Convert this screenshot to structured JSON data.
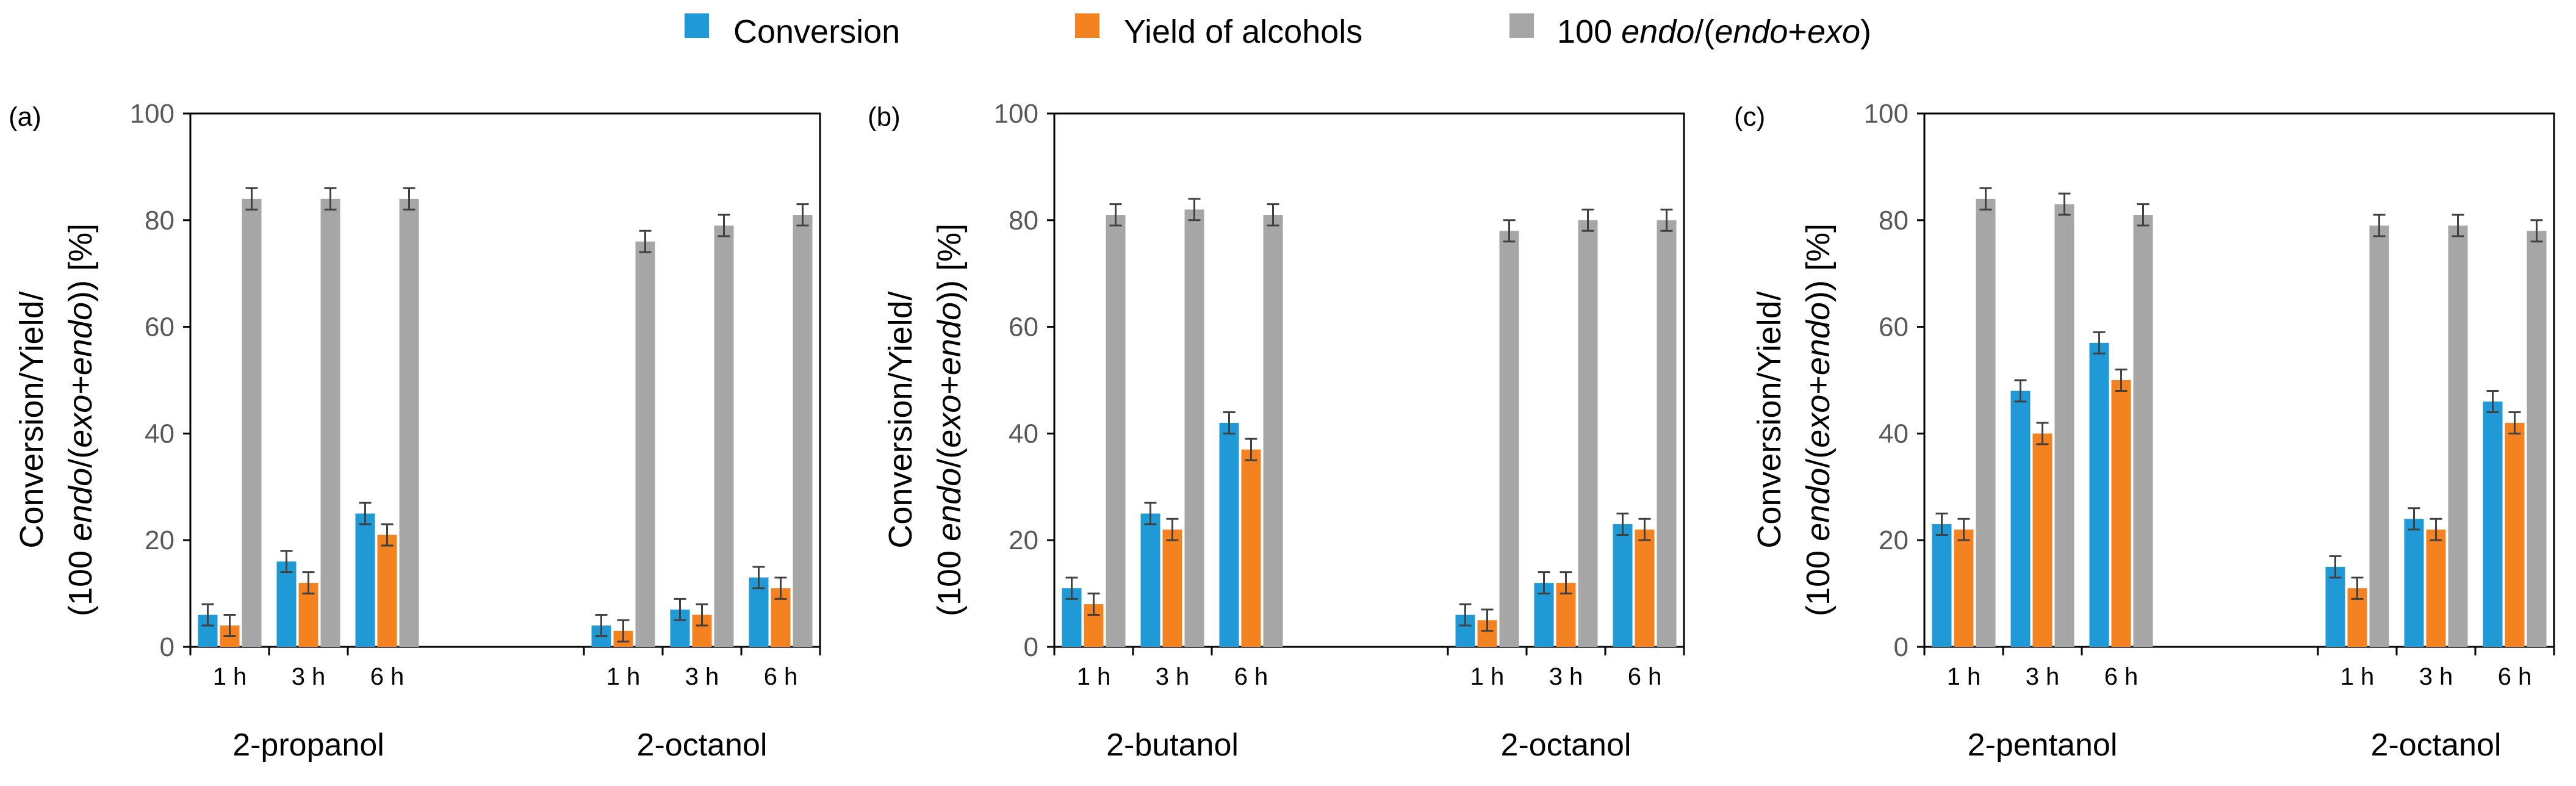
{
  "legend": {
    "conversion": "Conversion",
    "yield": "Yield of alcohols",
    "endo_prefix": "100 ",
    "endo_1": "endo",
    "endo_mid": "/(",
    "endo_2": "endo",
    "endo_plus": "+",
    "endo_3": "exo",
    "endo_close": ")"
  },
  "ylabel": {
    "line1": "Conversion/Yield/",
    "l2_a": "(100 ",
    "l2_b": "endo",
    "l2_c": "/(",
    "l2_d": "exo",
    "l2_e": "+",
    "l2_f": "endo",
    "l2_g": "))  [%]"
  },
  "colors": {
    "conversion": "#1f9ad6",
    "yield": "#f58220",
    "endo": "#a6a6a6",
    "error": "#404040"
  },
  "chart_data": [
    {
      "type": "bar",
      "panel_label": "(a)",
      "ylim": [
        0,
        100
      ],
      "yticks": [
        "0",
        "20",
        "40",
        "60",
        "80",
        "100"
      ],
      "groups": [
        {
          "name": "2-propanol",
          "categories": [
            "1 h",
            "3 h",
            "6 h"
          ],
          "series": [
            {
              "name": "Conversion",
              "values": [
                6,
                16,
                25
              ],
              "errors": [
                2,
                2,
                2
              ]
            },
            {
              "name": "Yield of alcohols",
              "values": [
                4,
                12,
                21
              ],
              "errors": [
                2,
                2,
                2
              ]
            },
            {
              "name": "100 endo/(endo+exo)",
              "values": [
                84,
                84,
                84
              ],
              "errors": [
                2,
                2,
                2
              ]
            }
          ]
        },
        {
          "name": "2-octanol",
          "categories": [
            "1 h",
            "3 h",
            "6 h"
          ],
          "series": [
            {
              "name": "Conversion",
              "values": [
                4,
                7,
                13
              ],
              "errors": [
                2,
                2,
                2
              ]
            },
            {
              "name": "Yield of alcohols",
              "values": [
                3,
                6,
                11
              ],
              "errors": [
                2,
                2,
                2
              ]
            },
            {
              "name": "100 endo/(endo+exo)",
              "values": [
                76,
                79,
                81
              ],
              "errors": [
                2,
                2,
                2
              ]
            }
          ]
        }
      ]
    },
    {
      "type": "bar",
      "panel_label": "(b)",
      "ylim": [
        0,
        100
      ],
      "yticks": [
        "0",
        "20",
        "40",
        "60",
        "80",
        "100"
      ],
      "groups": [
        {
          "name": "2-butanol",
          "categories": [
            "1 h",
            "3 h",
            "6 h"
          ],
          "series": [
            {
              "name": "Conversion",
              "values": [
                11,
                25,
                42
              ],
              "errors": [
                2,
                2,
                2
              ]
            },
            {
              "name": "Yield of alcohols",
              "values": [
                8,
                22,
                37
              ],
              "errors": [
                2,
                2,
                2
              ]
            },
            {
              "name": "100 endo/(endo+exo)",
              "values": [
                81,
                82,
                81
              ],
              "errors": [
                2,
                2,
                2
              ]
            }
          ]
        },
        {
          "name": "2-octanol",
          "categories": [
            "1 h",
            "3 h",
            "6 h"
          ],
          "series": [
            {
              "name": "Conversion",
              "values": [
                6,
                12,
                23
              ],
              "errors": [
                2,
                2,
                2
              ]
            },
            {
              "name": "Yield of alcohols",
              "values": [
                5,
                12,
                22
              ],
              "errors": [
                2,
                2,
                2
              ]
            },
            {
              "name": "100 endo/(endo+exo)",
              "values": [
                78,
                80,
                80
              ],
              "errors": [
                2,
                2,
                2
              ]
            }
          ]
        }
      ]
    },
    {
      "type": "bar",
      "panel_label": "(c)",
      "ylim": [
        0,
        100
      ],
      "yticks": [
        "0",
        "20",
        "40",
        "60",
        "80",
        "100"
      ],
      "groups": [
        {
          "name": "2-pentanol",
          "categories": [
            "1 h",
            "3 h",
            "6 h"
          ],
          "series": [
            {
              "name": "Conversion",
              "values": [
                23,
                48,
                57
              ],
              "errors": [
                2,
                2,
                2
              ]
            },
            {
              "name": "Yield of alcohols",
              "values": [
                22,
                40,
                50
              ],
              "errors": [
                2,
                2,
                2
              ]
            },
            {
              "name": "100 endo/(endo+exo)",
              "values": [
                84,
                83,
                81
              ],
              "errors": [
                2,
                2,
                2
              ]
            }
          ]
        },
        {
          "name": "2-octanol",
          "categories": [
            "1 h",
            "3 h",
            "6 h"
          ],
          "series": [
            {
              "name": "Conversion",
              "values": [
                15,
                24,
                46
              ],
              "errors": [
                2,
                2,
                2
              ]
            },
            {
              "name": "Yield of alcohols",
              "values": [
                11,
                22,
                42
              ],
              "errors": [
                2,
                2,
                2
              ]
            },
            {
              "name": "100 endo/(endo+exo)",
              "values": [
                79,
                79,
                78
              ],
              "errors": [
                2,
                2,
                2
              ]
            }
          ]
        }
      ]
    }
  ]
}
